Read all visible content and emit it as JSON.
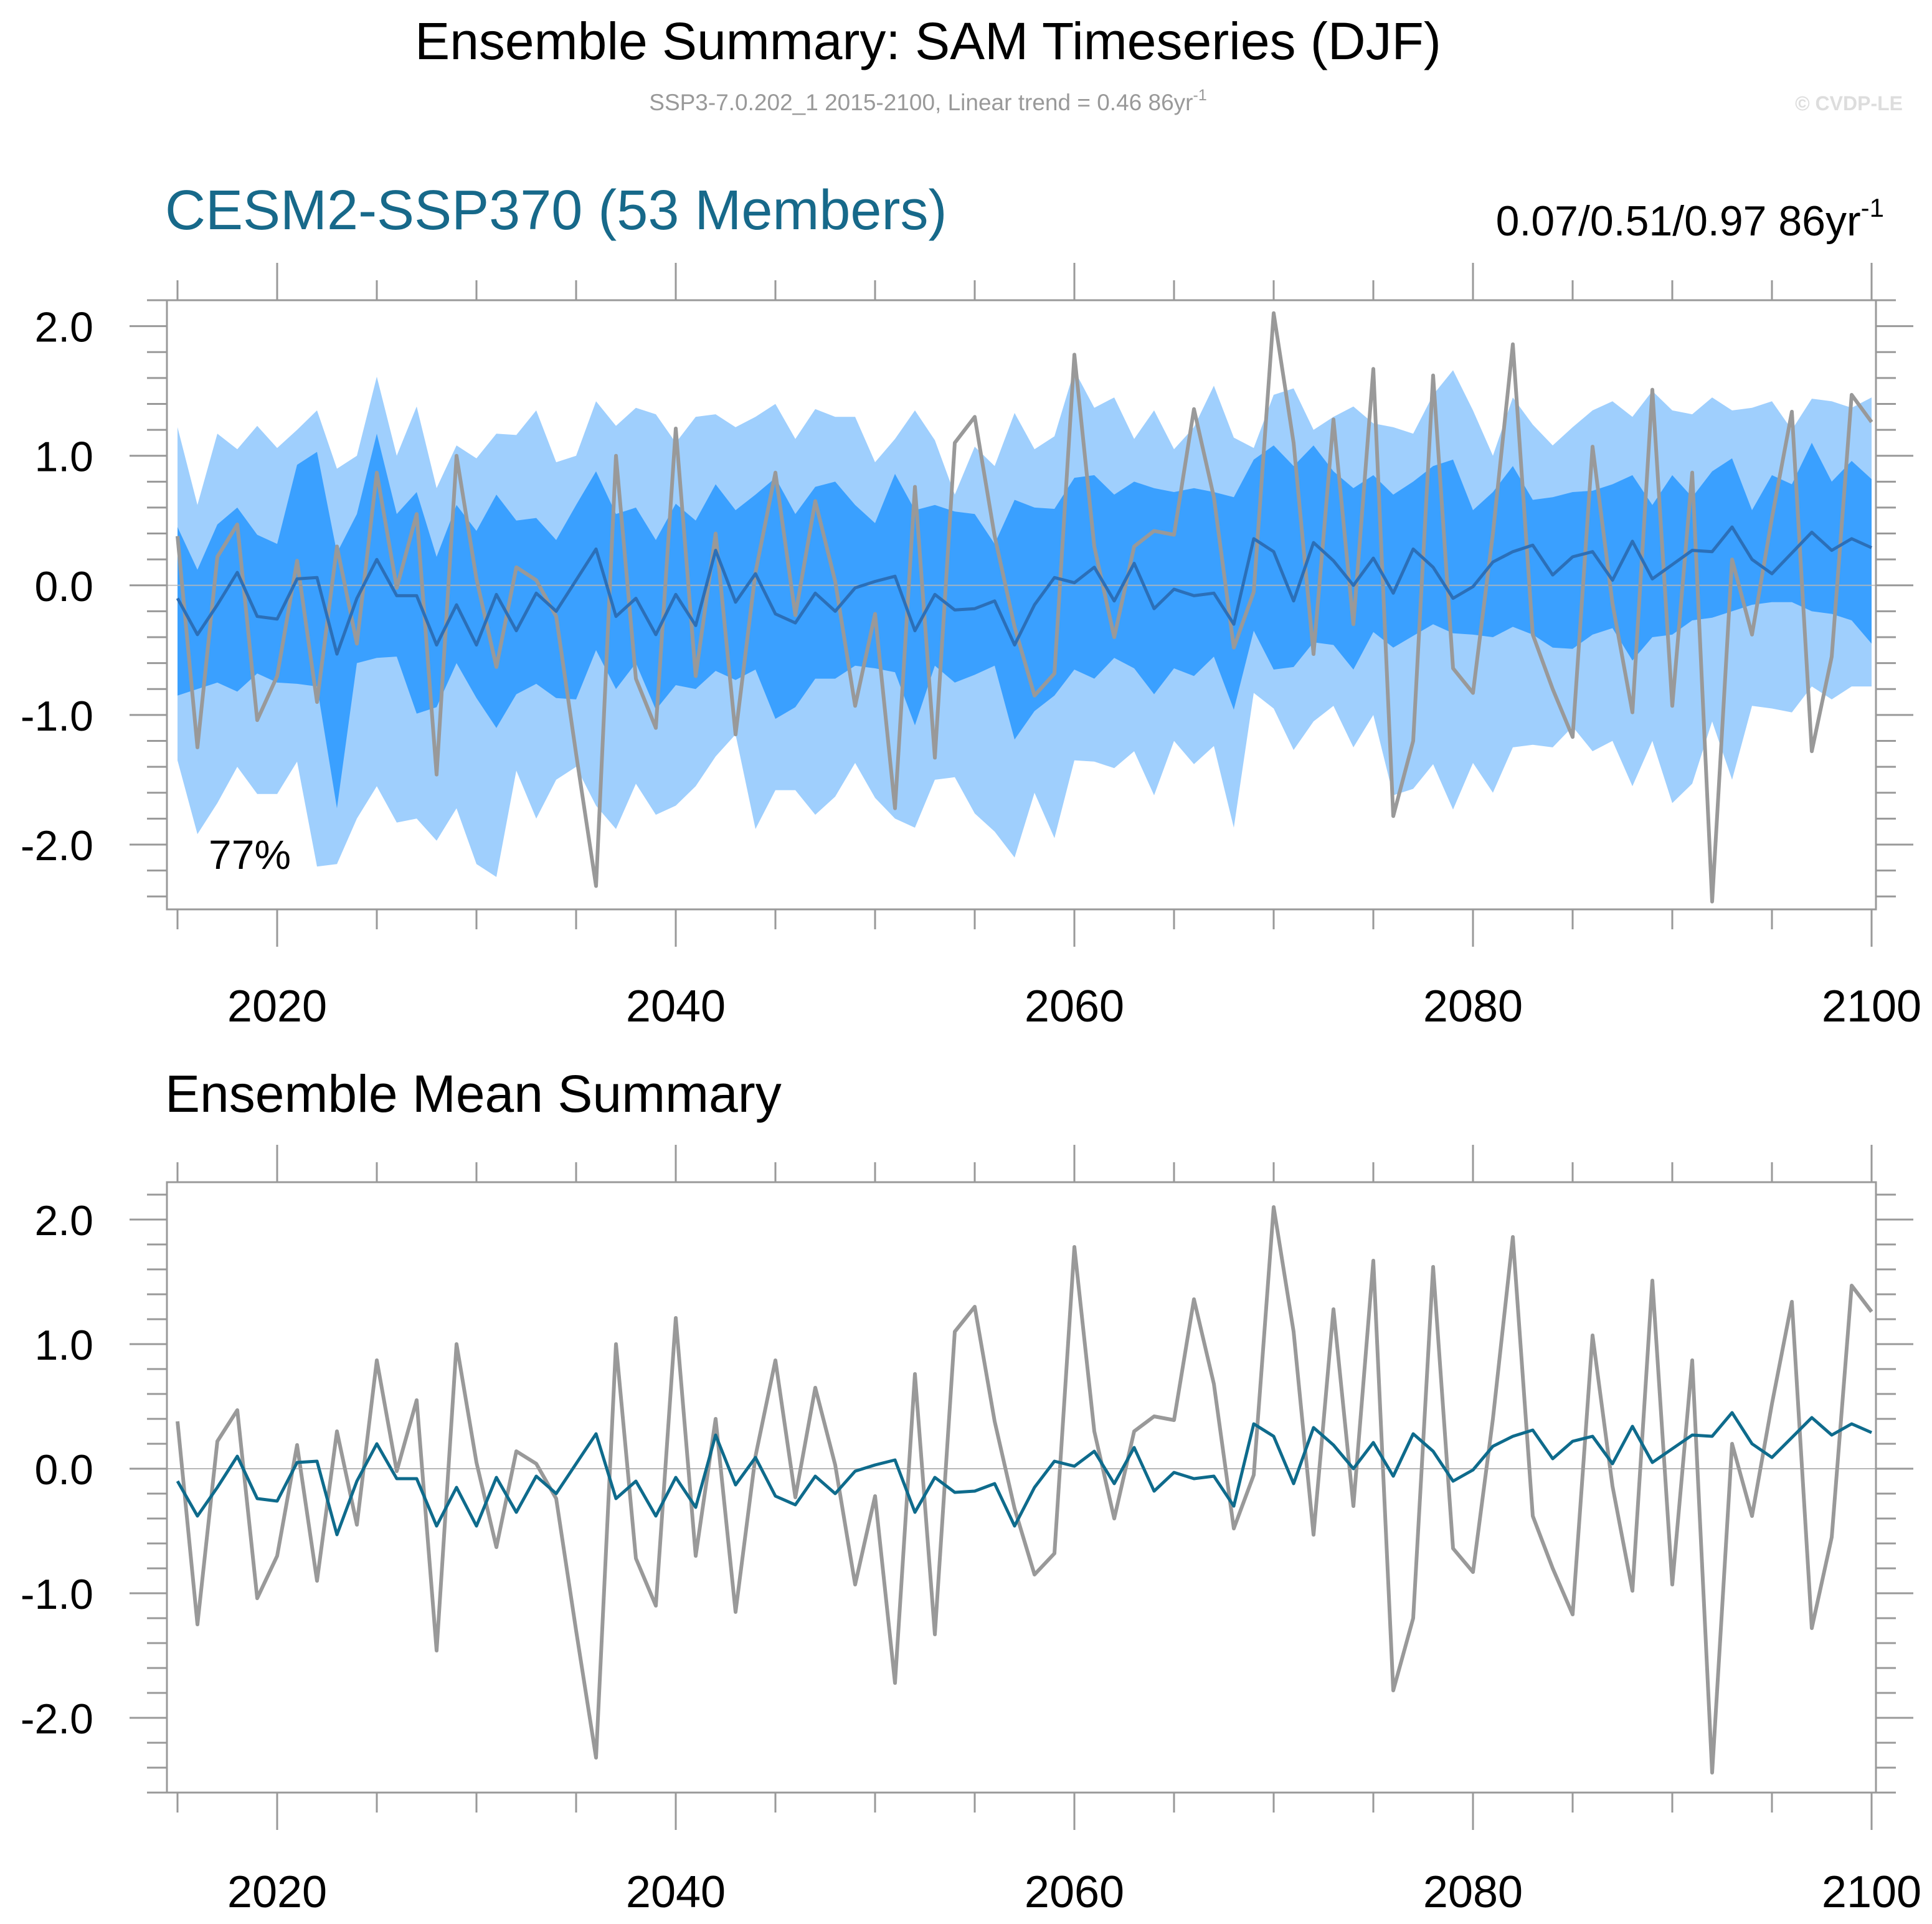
{
  "header": {
    "title": "Ensemble Summary: SAM Timeseries (DJF)",
    "subtitle_main": "SSP3-7.0.202_1 2015-2100, Linear trend = 0.46 86yr",
    "subtitle_sup": "-1",
    "watermark": "© CVDP-LE"
  },
  "colors": {
    "band_outer": "#9fcffd",
    "band_inner": "#3aa0ff",
    "ensemble_mean_top": "#2b6fb8",
    "ensemble_mean_bottom": "#0e6b8c",
    "observations": "#999999",
    "panel_title": "#17698a",
    "axis": "#999999",
    "zero_line": "#b8b8b8"
  },
  "chart_data": [
    {
      "type": "line",
      "panel": "top",
      "title": "CESM2-SSP370 (53 Members)",
      "right_label_main": "0.07/0.51/0.97 86yr",
      "right_label_sup": "-1",
      "annotation": "77%",
      "xlim": [
        2014,
        2100
      ],
      "ylim": [
        -2.5,
        2.2
      ],
      "xticks": [
        2020,
        2040,
        2060,
        2080,
        2100
      ],
      "ytick_labels": [
        "2.0",
        "1.0",
        "0.0",
        "-1.0",
        "-2.0"
      ],
      "ytick_values": [
        2.0,
        1.0,
        0.0,
        -1.0,
        -2.0
      ],
      "x": [
        2015,
        2016,
        2017,
        2018,
        2019,
        2020,
        2021,
        2022,
        2023,
        2024,
        2025,
        2026,
        2027,
        2028,
        2029,
        2030,
        2031,
        2032,
        2033,
        2034,
        2035,
        2036,
        2037,
        2038,
        2039,
        2040,
        2041,
        2042,
        2043,
        2044,
        2045,
        2046,
        2047,
        2048,
        2049,
        2050,
        2051,
        2052,
        2053,
        2054,
        2055,
        2056,
        2057,
        2058,
        2059,
        2060,
        2061,
        2062,
        2063,
        2064,
        2065,
        2066,
        2067,
        2068,
        2069,
        2070,
        2071,
        2072,
        2073,
        2074,
        2075,
        2076,
        2077,
        2078,
        2079,
        2080,
        2081,
        2082,
        2083,
        2084,
        2085,
        2086,
        2087,
        2088,
        2089,
        2090,
        2091,
        2092,
        2093,
        2094,
        2095,
        2096,
        2097,
        2098,
        2099,
        2100
      ],
      "series": [
        {
          "name": "observations",
          "values": [
            0.38,
            -1.25,
            0.22,
            0.47,
            -1.04,
            -0.7,
            0.19,
            -0.9,
            0.3,
            -0.45,
            0.87,
            -0.02,
            0.55,
            -1.46,
            1.0,
            0.05,
            -0.63,
            0.14,
            0.04,
            -0.24,
            -1.3,
            -2.32,
            1.0,
            -0.72,
            -1.1,
            1.21,
            -0.7,
            0.4,
            -1.15,
            0.1,
            0.87,
            -0.23,
            0.65,
            0.03,
            -0.93,
            -0.22,
            -1.72,
            0.76,
            -1.33,
            1.1,
            1.3,
            0.38,
            -0.32,
            -0.85,
            -0.68,
            1.78,
            0.3,
            -0.4,
            0.3,
            0.42,
            0.39,
            1.36,
            0.68,
            -0.48,
            -0.05,
            2.1,
            1.1,
            -0.53,
            1.28,
            -0.3,
            1.67,
            -1.78,
            -1.2,
            1.62,
            -0.64,
            -0.83,
            0.4,
            1.86,
            -0.38,
            -0.8,
            -1.17,
            1.07,
            -0.14,
            -0.98,
            1.51,
            -0.93,
            0.87,
            -2.44,
            0.2,
            -0.38,
            0.52,
            1.34,
            -1.28,
            -0.55,
            1.47,
            1.26
          ]
        },
        {
          "name": "ensemble mean",
          "values": [
            -0.1,
            -0.38,
            -0.15,
            0.1,
            -0.24,
            -0.26,
            0.05,
            0.06,
            -0.53,
            -0.1,
            0.2,
            -0.08,
            -0.08,
            -0.46,
            -0.15,
            -0.46,
            -0.07,
            -0.35,
            -0.06,
            -0.2,
            0.04,
            0.28,
            -0.24,
            -0.1,
            -0.38,
            -0.07,
            -0.31,
            0.27,
            -0.13,
            0.09,
            -0.22,
            -0.29,
            -0.06,
            -0.2,
            -0.02,
            0.03,
            0.07,
            -0.35,
            -0.07,
            -0.19,
            -0.18,
            -0.12,
            -0.46,
            -0.15,
            0.06,
            0.02,
            0.14,
            -0.12,
            0.17,
            -0.18,
            -0.03,
            -0.08,
            -0.06,
            -0.3,
            0.36,
            0.26,
            -0.12,
            0.33,
            0.19,
            0.0,
            0.21,
            -0.06,
            0.28,
            0.14,
            -0.1,
            -0.01,
            0.18,
            0.26,
            0.31,
            0.08,
            0.22,
            0.26,
            0.04,
            0.34,
            0.05,
            0.16,
            0.27,
            0.26,
            0.45,
            0.2,
            0.09,
            0.25,
            0.41,
            0.27,
            0.36,
            0.29
          ]
        }
      ],
      "bands": [
        {
          "name": "outer range",
          "upper": [
            1.22,
            0.62,
            1.17,
            1.05,
            1.23,
            1.06,
            1.2,
            1.35,
            0.9,
            1.0,
            1.61,
            1.0,
            1.38,
            0.75,
            1.08,
            0.98,
            1.17,
            1.16,
            1.35,
            0.95,
            1.0,
            1.42,
            1.23,
            1.37,
            1.32,
            1.1,
            1.3,
            1.32,
            1.22,
            1.3,
            1.4,
            1.13,
            1.36,
            1.3,
            1.3,
            0.95,
            1.13,
            1.35,
            1.12,
            0.7,
            1.07,
            0.92,
            1.33,
            1.05,
            1.15,
            1.66,
            1.37,
            1.45,
            1.13,
            1.35,
            1.05,
            1.22,
            1.54,
            1.14,
            1.06,
            1.47,
            1.52,
            1.2,
            1.3,
            1.38,
            1.25,
            1.22,
            1.17,
            1.47,
            1.66,
            1.35,
            1.0,
            1.45,
            1.24,
            1.08,
            1.22,
            1.35,
            1.42,
            1.3,
            1.5,
            1.35,
            1.32,
            1.45,
            1.35,
            1.37,
            1.42,
            1.2,
            1.44,
            1.42,
            1.37,
            1.45
          ],
          "lower": [
            -1.35,
            -1.92,
            -1.68,
            -1.4,
            -1.61,
            -1.61,
            -1.36,
            -2.17,
            -2.15,
            -1.8,
            -1.55,
            -1.83,
            -1.8,
            -1.97,
            -1.72,
            -2.15,
            -2.25,
            -1.43,
            -1.8,
            -1.5,
            -1.4,
            -1.7,
            -1.88,
            -1.53,
            -1.77,
            -1.7,
            -1.55,
            -1.32,
            -1.15,
            -1.88,
            -1.58,
            -1.58,
            -1.77,
            -1.63,
            -1.37,
            -1.64,
            -1.8,
            -1.87,
            -1.5,
            -1.48,
            -1.76,
            -1.9,
            -2.1,
            -1.6,
            -1.95,
            -1.35,
            -1.36,
            -1.41,
            -1.28,
            -1.62,
            -1.2,
            -1.38,
            -1.24,
            -1.87,
            -0.83,
            -0.95,
            -1.27,
            -1.05,
            -0.93,
            -1.25,
            -1.0,
            -1.62,
            -1.57,
            -1.38,
            -1.73,
            -1.37,
            -1.6,
            -1.25,
            -1.23,
            -1.25,
            -1.09,
            -1.28,
            -1.2,
            -1.55,
            -1.2,
            -1.68,
            -1.53,
            -1.05,
            -1.5,
            -0.93,
            -0.95,
            -0.98,
            -0.78,
            -0.88,
            -0.78,
            -0.78
          ]
        },
        {
          "name": "inner range",
          "upper": [
            0.45,
            0.12,
            0.47,
            0.6,
            0.39,
            0.32,
            0.93,
            1.03,
            0.25,
            0.55,
            1.17,
            0.55,
            0.72,
            0.22,
            0.62,
            0.42,
            0.7,
            0.5,
            0.52,
            0.35,
            0.62,
            0.88,
            0.55,
            0.6,
            0.35,
            0.63,
            0.5,
            0.78,
            0.58,
            0.7,
            0.83,
            0.55,
            0.76,
            0.8,
            0.62,
            0.48,
            0.86,
            0.58,
            0.62,
            0.57,
            0.55,
            0.32,
            0.66,
            0.6,
            0.59,
            0.83,
            0.85,
            0.7,
            0.8,
            0.75,
            0.72,
            0.75,
            0.72,
            0.68,
            0.97,
            1.08,
            0.92,
            1.08,
            0.88,
            0.75,
            0.85,
            0.7,
            0.8,
            0.92,
            0.97,
            0.58,
            0.72,
            0.92,
            0.66,
            0.68,
            0.72,
            0.73,
            0.78,
            0.85,
            0.62,
            0.85,
            0.68,
            0.88,
            0.98,
            0.58,
            0.85,
            0.78,
            1.1,
            0.8,
            0.96,
            0.82
          ],
          "lower": [
            -0.85,
            -0.8,
            -0.75,
            -0.82,
            -0.68,
            -0.75,
            -0.76,
            -0.78,
            -1.72,
            -0.6,
            -0.56,
            -0.55,
            -0.99,
            -0.94,
            -0.6,
            -0.87,
            -1.1,
            -0.84,
            -0.76,
            -0.87,
            -0.88,
            -0.5,
            -0.8,
            -0.6,
            -0.96,
            -0.77,
            -0.8,
            -0.66,
            -0.73,
            -0.65,
            -1.03,
            -0.94,
            -0.72,
            -0.72,
            -0.62,
            -0.64,
            -0.67,
            -1.08,
            -0.62,
            -0.75,
            -0.69,
            -0.62,
            -1.19,
            -0.97,
            -0.85,
            -0.65,
            -0.72,
            -0.56,
            -0.64,
            -0.84,
            -0.64,
            -0.7,
            -0.55,
            -0.96,
            -0.35,
            -0.65,
            -0.63,
            -0.44,
            -0.46,
            -0.65,
            -0.36,
            -0.48,
            -0.39,
            -0.3,
            -0.37,
            -0.38,
            -0.4,
            -0.32,
            -0.38,
            -0.48,
            -0.49,
            -0.38,
            -0.33,
            -0.58,
            -0.4,
            -0.38,
            -0.27,
            -0.25,
            -0.2,
            -0.15,
            -0.13,
            -0.13,
            -0.2,
            -0.22,
            -0.27,
            -0.45
          ]
        }
      ]
    },
    {
      "type": "line",
      "panel": "bottom",
      "title": "Ensemble Mean Summary",
      "xlim": [
        2014,
        2100
      ],
      "ylim": [
        -2.6,
        2.3
      ],
      "xticks": [
        2020,
        2040,
        2060,
        2080,
        2100
      ],
      "ytick_labels": [
        "2.0",
        "1.0",
        "0.0",
        "-1.0",
        "-2.0"
      ],
      "ytick_values": [
        2.0,
        1.0,
        0.0,
        -1.0,
        -2.0
      ],
      "series_ref": "same x and series values as top panel (observations, ensemble mean)"
    }
  ]
}
